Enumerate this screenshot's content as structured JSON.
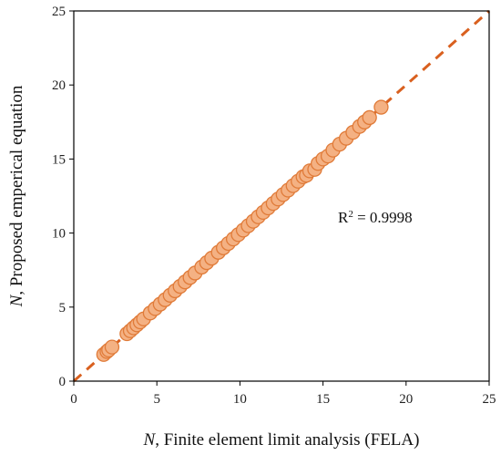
{
  "chart_data": {
    "type": "scatter",
    "xlabel_var": "N",
    "xlabel_rest": ", Finite element limit analysis  (FELA)",
    "ylabel_var": "N",
    "ylabel_rest": ", Proposed emperical equation",
    "xlim": [
      0,
      25
    ],
    "ylim": [
      0,
      25
    ],
    "xticks": [
      0,
      5,
      10,
      15,
      20,
      25
    ],
    "yticks": [
      0,
      5,
      10,
      15,
      20,
      25
    ],
    "annotation": {
      "base": "R",
      "sup": "2",
      "rest": " = 0.9998"
    },
    "fit_line": {
      "x": [
        0,
        25
      ],
      "y": [
        0,
        25
      ],
      "style": "dashed"
    },
    "colors": {
      "marker_fill": "#f4b183",
      "marker_stroke": "#e07b39",
      "line": "#d9601f"
    },
    "points": [
      [
        1.8,
        1.8
      ],
      [
        2.0,
        2.0
      ],
      [
        2.1,
        2.1
      ],
      [
        2.3,
        2.3
      ],
      [
        3.2,
        3.2
      ],
      [
        3.4,
        3.4
      ],
      [
        3.6,
        3.6
      ],
      [
        3.8,
        3.8
      ],
      [
        4.0,
        4.0
      ],
      [
        4.2,
        4.2
      ],
      [
        4.6,
        4.6
      ],
      [
        4.9,
        4.9
      ],
      [
        5.2,
        5.2
      ],
      [
        5.5,
        5.5
      ],
      [
        5.8,
        5.8
      ],
      [
        6.1,
        6.1
      ],
      [
        6.4,
        6.4
      ],
      [
        6.7,
        6.7
      ],
      [
        7.0,
        7.0
      ],
      [
        7.3,
        7.3
      ],
      [
        7.7,
        7.7
      ],
      [
        8.0,
        8.0
      ],
      [
        8.3,
        8.3
      ],
      [
        8.7,
        8.7
      ],
      [
        9.0,
        9.0
      ],
      [
        9.3,
        9.3
      ],
      [
        9.6,
        9.6
      ],
      [
        9.9,
        9.9
      ],
      [
        10.2,
        10.2
      ],
      [
        10.5,
        10.5
      ],
      [
        10.8,
        10.8
      ],
      [
        11.1,
        11.1
      ],
      [
        11.4,
        11.4
      ],
      [
        11.7,
        11.7
      ],
      [
        12.0,
        12.0
      ],
      [
        12.3,
        12.3
      ],
      [
        12.6,
        12.6
      ],
      [
        12.9,
        12.9
      ],
      [
        13.2,
        13.2
      ],
      [
        13.5,
        13.5
      ],
      [
        13.8,
        13.8
      ],
      [
        14.0,
        13.9
      ],
      [
        14.2,
        14.2
      ],
      [
        14.5,
        14.3
      ],
      [
        14.7,
        14.7
      ],
      [
        15.0,
        15.0
      ],
      [
        15.3,
        15.2
      ],
      [
        15.6,
        15.6
      ],
      [
        16.0,
        16.0
      ],
      [
        16.4,
        16.4
      ],
      [
        16.8,
        16.8
      ],
      [
        17.2,
        17.2
      ],
      [
        17.5,
        17.5
      ],
      [
        17.8,
        17.8
      ],
      [
        18.5,
        18.5
      ]
    ]
  }
}
